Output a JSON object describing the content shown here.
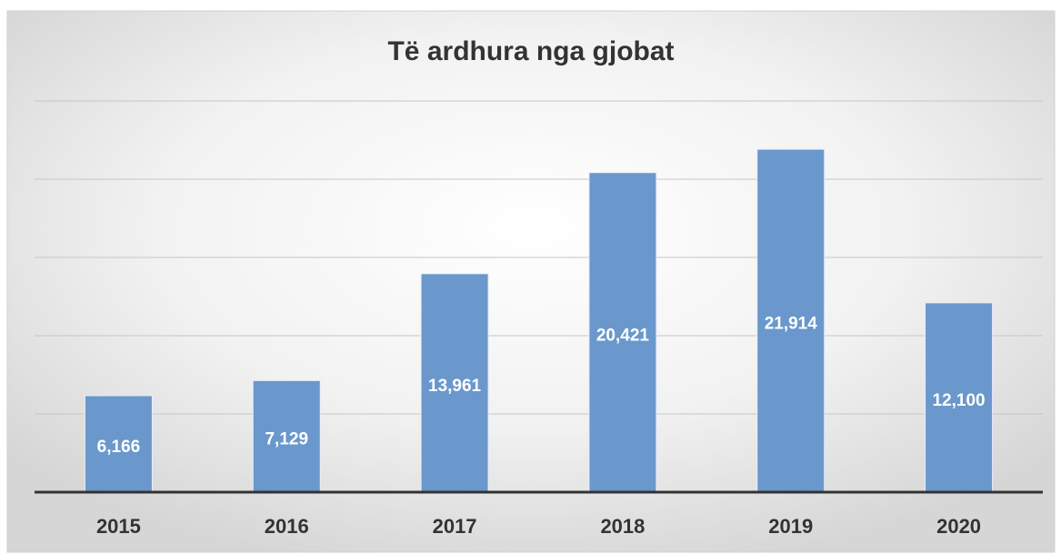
{
  "chart_data": {
    "type": "bar",
    "title": "Të ardhura nga gjobat",
    "categories": [
      "2015",
      "2016",
      "2017",
      "2018",
      "2019",
      "2020"
    ],
    "values": [
      6166,
      7129,
      13961,
      20421,
      21914,
      12100
    ],
    "value_labels": [
      "6,166",
      "7,129",
      "13,961",
      "20,421",
      "21,914",
      "12,100"
    ],
    "color": "#6a98cc",
    "ylim": [
      0,
      25000
    ],
    "yticks": [
      0,
      5000,
      10000,
      15000,
      20000,
      25000
    ],
    "grid": true
  }
}
